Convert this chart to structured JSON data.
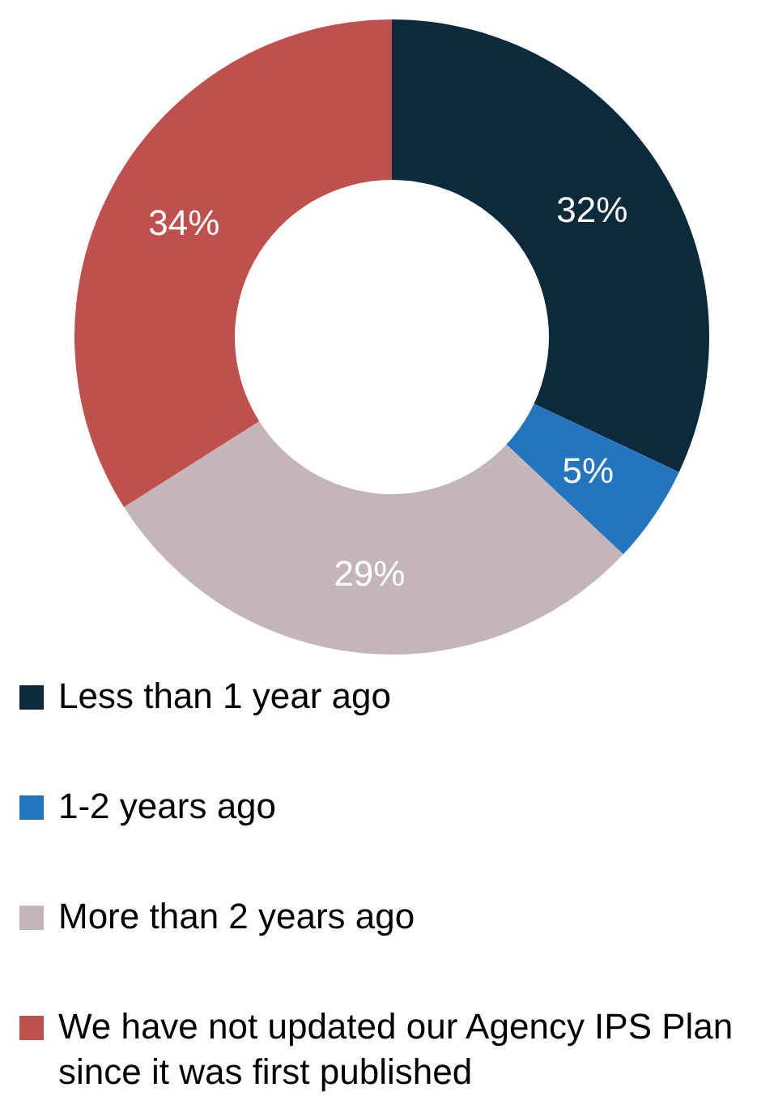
{
  "chart_data": {
    "type": "donut",
    "categories": [
      "Less than 1 year ago",
      "1-2 years ago",
      "More than 2 years ago",
      "We have not updated our Agency IPS Plan since it was first published"
    ],
    "values": [
      32,
      5,
      29,
      34
    ],
    "value_labels": [
      "32%",
      "5%",
      "29%",
      "34%"
    ],
    "colors": [
      "#0b2b3c",
      "#2475c0",
      "#c3b5b8",
      "#c0504d"
    ],
    "legend": "bottom"
  }
}
